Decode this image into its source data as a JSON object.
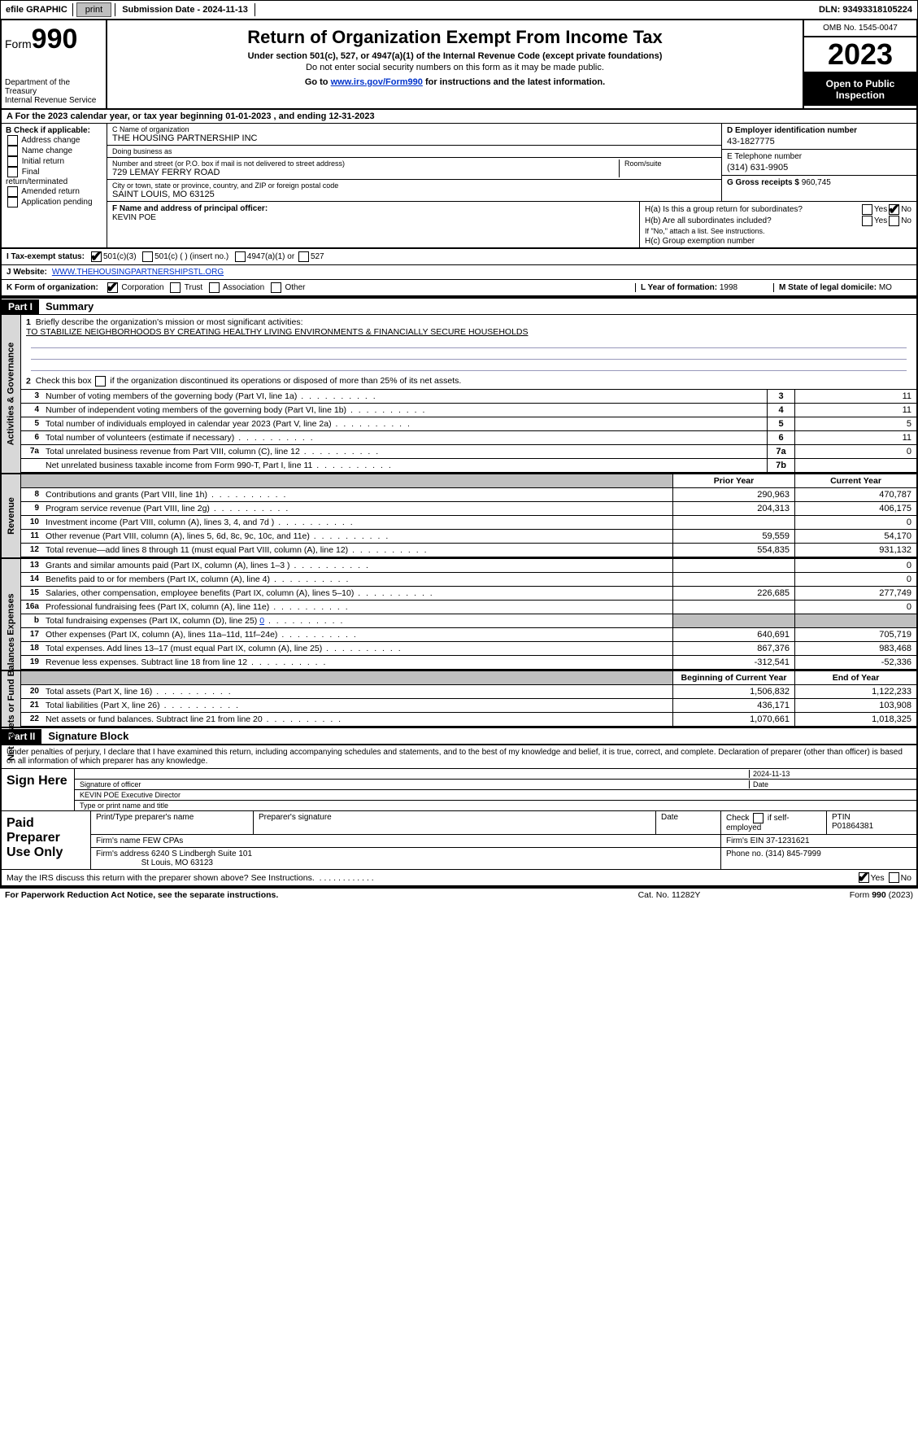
{
  "topbar": {
    "efile": "efile GRAPHIC",
    "print": "print",
    "subdate_lbl": "Submission Date - ",
    "subdate": "2024-11-13",
    "dln_lbl": "DLN: ",
    "dln": "93493318105224"
  },
  "header": {
    "form_word": "Form",
    "form_no": "990",
    "dept": "Department of the Treasury\nInternal Revenue Service",
    "title": "Return of Organization Exempt From Income Tax",
    "sub": "Under section 501(c), 527, or 4947(a)(1) of the Internal Revenue Code (except private foundations)",
    "sub2": "Do not enter social security numbers on this form as it may be made public.",
    "goto_pre": "Go to ",
    "goto_link": "www.irs.gov/Form990",
    "goto_post": " for instructions and the latest information.",
    "omb": "OMB No. 1545-0047",
    "year": "2023",
    "open": "Open to Public Inspection"
  },
  "tyrow": {
    "a": "A For the 2023 calendar year, or tax year beginning ",
    "beg": "01-01-2023",
    "mid": "  , and ending ",
    "end": "12-31-2023"
  },
  "colB": {
    "hd": "B Check if applicable:",
    "items": [
      "Address change",
      "Name change",
      "Initial return",
      "Final return/terminated",
      "Amended return",
      "Application pending"
    ]
  },
  "colC": {
    "name_lbl": "C Name of organization",
    "name": "THE HOUSING PARTNERSHIP INC",
    "dba_lbl": "Doing business as",
    "dba": "",
    "addr_lbl": "Number and street (or P.O. box if mail is not delivered to street address)",
    "room_lbl": "Room/suite",
    "addr": "729 LEMAY FERRY ROAD",
    "city_lbl": "City or town, state or province, country, and ZIP or foreign postal code",
    "city": "SAINT LOUIS, MO  63125"
  },
  "colD": {
    "lbl": "D Employer identification number",
    "v": "43-1827775"
  },
  "colE": {
    "lbl": "E Telephone number",
    "v": "(314) 631-9905"
  },
  "colG": {
    "lbl": "G Gross receipts $ ",
    "v": "960,745"
  },
  "colF": {
    "lbl": "F  Name and address of principal officer:",
    "v": "KEVIN POE"
  },
  "colH": {
    "a_lbl": "H(a)  Is this a group return for subordinates?",
    "b_lbl": "H(b)  Are all subordinates included?",
    "note": "If \"No,\" attach a list. See instructions.",
    "c_lbl": "H(c)  Group exemption number ",
    "yes": "Yes",
    "no": "No",
    "ha_yes": false,
    "ha_no": true,
    "hb_yes": false,
    "hb_no": false
  },
  "rowI": {
    "lbl": "I   Tax-exempt status:",
    "c3": "501(c)(3)",
    "c": "501(c) (   ) (insert no.)",
    "a": "4947(a)(1) or",
    "s": "527",
    "c3_on": true
  },
  "rowJ": {
    "lbl": "J   Website: ",
    "v": "WWW.THEHOUSINGPARTNERSHIPSTL.ORG"
  },
  "rowK": {
    "lbl": "K Form of organization:",
    "opts": [
      "Corporation",
      "Trust",
      "Association",
      "Other"
    ],
    "corp_on": true,
    "L_lbl": "L Year of formation: ",
    "L_v": "1998",
    "M_lbl": "M State of legal domicile: ",
    "M_v": "MO"
  },
  "part1": {
    "hdr": "Part I",
    "ttl": "Summary"
  },
  "sectA": {
    "label": "Activities & Governance",
    "l1_lbl": "Briefly describe the organization's mission or most significant activities:",
    "l1_v": "TO STABILIZE NEIGHBORHOODS BY CREATING HEALTHY LIVING ENVIRONMENTS & FINANCIALLY SECURE HOUSEHOLDS",
    "l2": "Check this box      if the organization discontinued its operations or disposed of more than 25% of its net assets.",
    "rows": [
      {
        "n": "3",
        "d": "Number of voting members of the governing body (Part VI, line 1a)",
        "b": "3",
        "v": "11"
      },
      {
        "n": "4",
        "d": "Number of independent voting members of the governing body (Part VI, line 1b)",
        "b": "4",
        "v": "11"
      },
      {
        "n": "5",
        "d": "Total number of individuals employed in calendar year 2023 (Part V, line 2a)",
        "b": "5",
        "v": "5"
      },
      {
        "n": "6",
        "d": "Total number of volunteers (estimate if necessary)",
        "b": "6",
        "v": "11"
      },
      {
        "n": "7a",
        "d": "Total unrelated business revenue from Part VIII, column (C), line 12",
        "b": "7a",
        "v": "0"
      },
      {
        "n": "",
        "d": "Net unrelated business taxable income from Form 990-T, Part I, line 11",
        "b": "7b",
        "v": ""
      }
    ]
  },
  "hdrPY": "Prior Year",
  "hdrCY": "Current Year",
  "sectRev": {
    "label": "Revenue",
    "rows": [
      {
        "n": "8",
        "d": "Contributions and grants (Part VIII, line 1h)",
        "py": "290,963",
        "cy": "470,787"
      },
      {
        "n": "9",
        "d": "Program service revenue (Part VIII, line 2g)",
        "py": "204,313",
        "cy": "406,175"
      },
      {
        "n": "10",
        "d": "Investment income (Part VIII, column (A), lines 3, 4, and 7d )",
        "py": "",
        "cy": "0"
      },
      {
        "n": "11",
        "d": "Other revenue (Part VIII, column (A), lines 5, 6d, 8c, 9c, 10c, and 11e)",
        "py": "59,559",
        "cy": "54,170"
      },
      {
        "n": "12",
        "d": "Total revenue—add lines 8 through 11 (must equal Part VIII, column (A), line 12)",
        "py": "554,835",
        "cy": "931,132"
      }
    ]
  },
  "sectExp": {
    "label": "Expenses",
    "rows": [
      {
        "n": "13",
        "d": "Grants and similar amounts paid (Part IX, column (A), lines 1–3 )",
        "py": "",
        "cy": "0"
      },
      {
        "n": "14",
        "d": "Benefits paid to or for members (Part IX, column (A), line 4)",
        "py": "",
        "cy": "0"
      },
      {
        "n": "15",
        "d": "Salaries, other compensation, employee benefits (Part IX, column (A), lines 5–10)",
        "py": "226,685",
        "cy": "277,749"
      },
      {
        "n": "16a",
        "d": "Professional fundraising fees (Part IX, column (A), line 11e)",
        "py": "",
        "cy": "0"
      },
      {
        "n": "b",
        "d": "Total fundraising expenses (Part IX, column (D), line 25) ",
        "link": "0",
        "py": "SHADE",
        "cy": "SHADE"
      },
      {
        "n": "17",
        "d": "Other expenses (Part IX, column (A), lines 11a–11d, 11f–24e)",
        "py": "640,691",
        "cy": "705,719"
      },
      {
        "n": "18",
        "d": "Total expenses. Add lines 13–17 (must equal Part IX, column (A), line 25)",
        "py": "867,376",
        "cy": "983,468"
      },
      {
        "n": "19",
        "d": "Revenue less expenses. Subtract line 18 from line 12",
        "py": "-312,541",
        "cy": "-52,336"
      }
    ]
  },
  "hdrBY": "Beginning of Current Year",
  "hdrEY": "End of Year",
  "sectNA": {
    "label": "Net Assets or Fund Balances",
    "rows": [
      {
        "n": "20",
        "d": "Total assets (Part X, line 16)",
        "py": "1,506,832",
        "cy": "1,122,233"
      },
      {
        "n": "21",
        "d": "Total liabilities (Part X, line 26)",
        "py": "436,171",
        "cy": "103,908"
      },
      {
        "n": "22",
        "d": "Net assets or fund balances. Subtract line 21 from line 20",
        "py": "1,070,661",
        "cy": "1,018,325"
      }
    ]
  },
  "part2": {
    "hdr": "Part II",
    "ttl": "Signature Block"
  },
  "sig": {
    "decl": "Under penalties of perjury, I declare that I have examined this return, including accompanying schedules and statements, and to the best of my knowledge and belief, it is true, correct, and complete. Declaration of preparer (other than officer) is based on all information of which preparer has any knowledge.",
    "signhere": "Sign Here",
    "sig_lbl": "Signature of officer",
    "date_lbl": "Date",
    "sig_date": "2024-11-13",
    "name_lbl": "Type or print name and title",
    "name": "KEVIN POE  Executive Director"
  },
  "prep": {
    "lbl": "Paid Preparer Use Only",
    "r1": {
      "a": "Print/Type preparer's name",
      "b": "Preparer's signature",
      "c": "Date",
      "d": "Check        if self-employed",
      "e_lbl": "PTIN",
      "e": "P01864381"
    },
    "r2": {
      "lbl": "Firm's name      ",
      "v": "FEW CPAs",
      "ein_lbl": "Firm's EIN  ",
      "ein": "37-1231621"
    },
    "r3": {
      "lbl": "Firm's address ",
      "v1": "6240 S Lindbergh Suite 101",
      "v2": "St Louis, MO  63123",
      "ph_lbl": "Phone no. ",
      "ph": "(314) 845-7999"
    }
  },
  "irs": {
    "q": "May the IRS discuss this return with the preparer shown above? See Instructions.",
    "yes": "Yes",
    "no": "No",
    "yes_on": true,
    "no_on": false
  },
  "foot": {
    "a": "For Paperwork Reduction Act Notice, see the separate instructions.",
    "b": "Cat. No. 11282Y",
    "c": "Form 990 (2023)"
  }
}
